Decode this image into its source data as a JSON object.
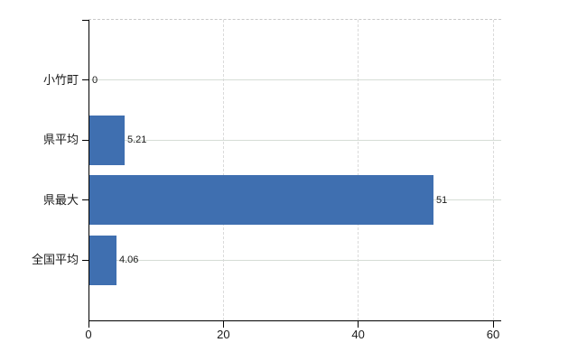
{
  "chart_data": {
    "type": "bar",
    "orientation": "horizontal",
    "title": "",
    "xlabel": "",
    "ylabel": "",
    "categories": [
      "小竹町",
      "県平均",
      "県最大",
      "全国平均"
    ],
    "values": [
      0,
      5.21,
      51,
      4.06
    ],
    "value_labels": [
      "0",
      "5.21",
      "51",
      "4.06"
    ],
    "x_ticks": [
      0,
      20,
      40,
      60
    ],
    "x_tick_labels": [
      "0",
      "20",
      "40",
      "60"
    ],
    "xlim": [
      0,
      61.2
    ],
    "grid": true,
    "legend": "none",
    "colors": {
      "bar": "#3f6fb0",
      "axis": "#000000",
      "gridline_horizontal": "#d6ddd6",
      "gridline_vertical": "#dadada",
      "plot_top_border": "#c9c9c9",
      "label_text": "#1a1a1a",
      "background": "#ffffff"
    }
  }
}
